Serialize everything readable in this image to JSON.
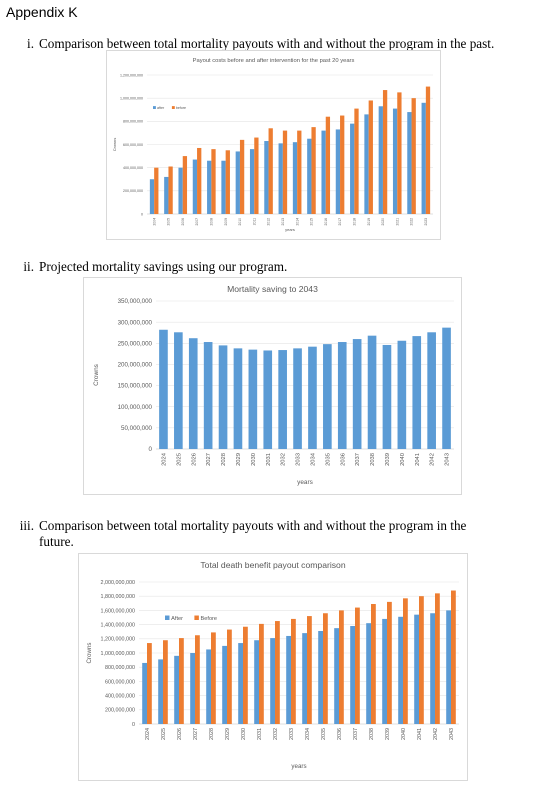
{
  "heading": "Appendix K",
  "sections": [
    {
      "num": "i.",
      "text": "Comparison between total mortality payouts with and without the program in the past."
    },
    {
      "num": "ii.",
      "text": "Projected mortality savings using our program."
    },
    {
      "num": "iii.",
      "text": "Comparison between total mortality payouts with and without the program in the",
      "text2": "future."
    }
  ],
  "chart_data": [
    {
      "type": "bar",
      "title": "Payout costs before and after intervention for the past 20 years",
      "xlabel": "years",
      "ylabel": "Crowns",
      "ylim": [
        0,
        1200000000
      ],
      "yticks": [
        0,
        200000000,
        400000000,
        600000000,
        800000000,
        1000000000,
        1200000000
      ],
      "ytick_labels": [
        "0",
        "200,000,000",
        "400,000,000",
        "600,000,000",
        "800,000,000",
        "1,000,000,000",
        "1,200,000,000"
      ],
      "legend_position": "top-left",
      "grid": true,
      "categories": [
        "2004",
        "2005",
        "2006",
        "2007",
        "2008",
        "2009",
        "2010",
        "2011",
        "2012",
        "2013",
        "2014",
        "2015",
        "2016",
        "2017",
        "2018",
        "2019",
        "2020",
        "2021",
        "2022",
        "2023"
      ],
      "series": [
        {
          "name": "after",
          "color": "#5b9bd5",
          "values": [
            300000000,
            320000000,
            400000000,
            470000000,
            460000000,
            460000000,
            540000000,
            560000000,
            630000000,
            610000000,
            620000000,
            650000000,
            720000000,
            730000000,
            780000000,
            860000000,
            930000000,
            910000000,
            880000000,
            960000000
          ]
        },
        {
          "name": "before",
          "color": "#ed7d31",
          "values": [
            400000000,
            410000000,
            500000000,
            570000000,
            560000000,
            550000000,
            640000000,
            660000000,
            740000000,
            720000000,
            720000000,
            750000000,
            840000000,
            850000000,
            910000000,
            980000000,
            1070000000,
            1050000000,
            1000000000,
            1100000000
          ]
        }
      ]
    },
    {
      "type": "bar",
      "title": "Mortality saving to 2043",
      "xlabel": "years",
      "ylabel": "Crowns",
      "ylim": [
        0,
        350000000
      ],
      "yticks": [
        0,
        50000000,
        100000000,
        150000000,
        200000000,
        250000000,
        300000000,
        350000000
      ],
      "ytick_labels": [
        "0",
        "50,000,000",
        "100,000,000",
        "150,000,000",
        "200,000,000",
        "250,000,000",
        "300,000,000",
        "350,000,000"
      ],
      "grid": true,
      "categories": [
        "2024",
        "2025",
        "2026",
        "2027",
        "2028",
        "2029",
        "2030",
        "2031",
        "2032",
        "2033",
        "2034",
        "2035",
        "2036",
        "2037",
        "2038",
        "2039",
        "2040",
        "2041",
        "2042",
        "2043"
      ],
      "series": [
        {
          "color": "#5b9bd5",
          "values": [
            282000000,
            276000000,
            262000000,
            253000000,
            245000000,
            238000000,
            235000000,
            233000000,
            234000000,
            238000000,
            242000000,
            248000000,
            253000000,
            260000000,
            268000000,
            246000000,
            256000000,
            267000000,
            276000000,
            287000000
          ]
        }
      ]
    },
    {
      "type": "bar",
      "title": "Total death benefit payout comparison",
      "xlabel": "years",
      "ylabel": "Crowns",
      "ylim": [
        0,
        2000000000
      ],
      "yticks": [
        0,
        200000000,
        400000000,
        600000000,
        800000000,
        1000000000,
        1200000000,
        1400000000,
        1600000000,
        1800000000,
        2000000000
      ],
      "ytick_labels": [
        "0",
        "200,000,000",
        "400,000,000",
        "600,000,000",
        "800,000,000",
        "1,000,000,000",
        "1,200,000,000",
        "1,400,000,000",
        "1,600,000,000",
        "1,800,000,000",
        "2,000,000,000"
      ],
      "legend_position": "top-left",
      "grid": true,
      "categories": [
        "2024",
        "2025",
        "2026",
        "2027",
        "2028",
        "2029",
        "2030",
        "2031",
        "2032",
        "2033",
        "2034",
        "2035",
        "2036",
        "2037",
        "2038",
        "2039",
        "2040",
        "2041",
        "2042",
        "2043"
      ],
      "series": [
        {
          "name": "After",
          "color": "#5b9bd5",
          "values": [
            860000000,
            910000000,
            960000000,
            1000000000,
            1050000000,
            1100000000,
            1140000000,
            1180000000,
            1210000000,
            1240000000,
            1280000000,
            1310000000,
            1350000000,
            1380000000,
            1420000000,
            1480000000,
            1510000000,
            1540000000,
            1560000000,
            1600000000
          ]
        },
        {
          "name": "Before",
          "color": "#ed7d31",
          "values": [
            1140000000,
            1180000000,
            1210000000,
            1250000000,
            1290000000,
            1330000000,
            1370000000,
            1410000000,
            1450000000,
            1480000000,
            1520000000,
            1560000000,
            1600000000,
            1640000000,
            1690000000,
            1720000000,
            1770000000,
            1800000000,
            1840000000,
            1880000000
          ]
        }
      ]
    }
  ]
}
